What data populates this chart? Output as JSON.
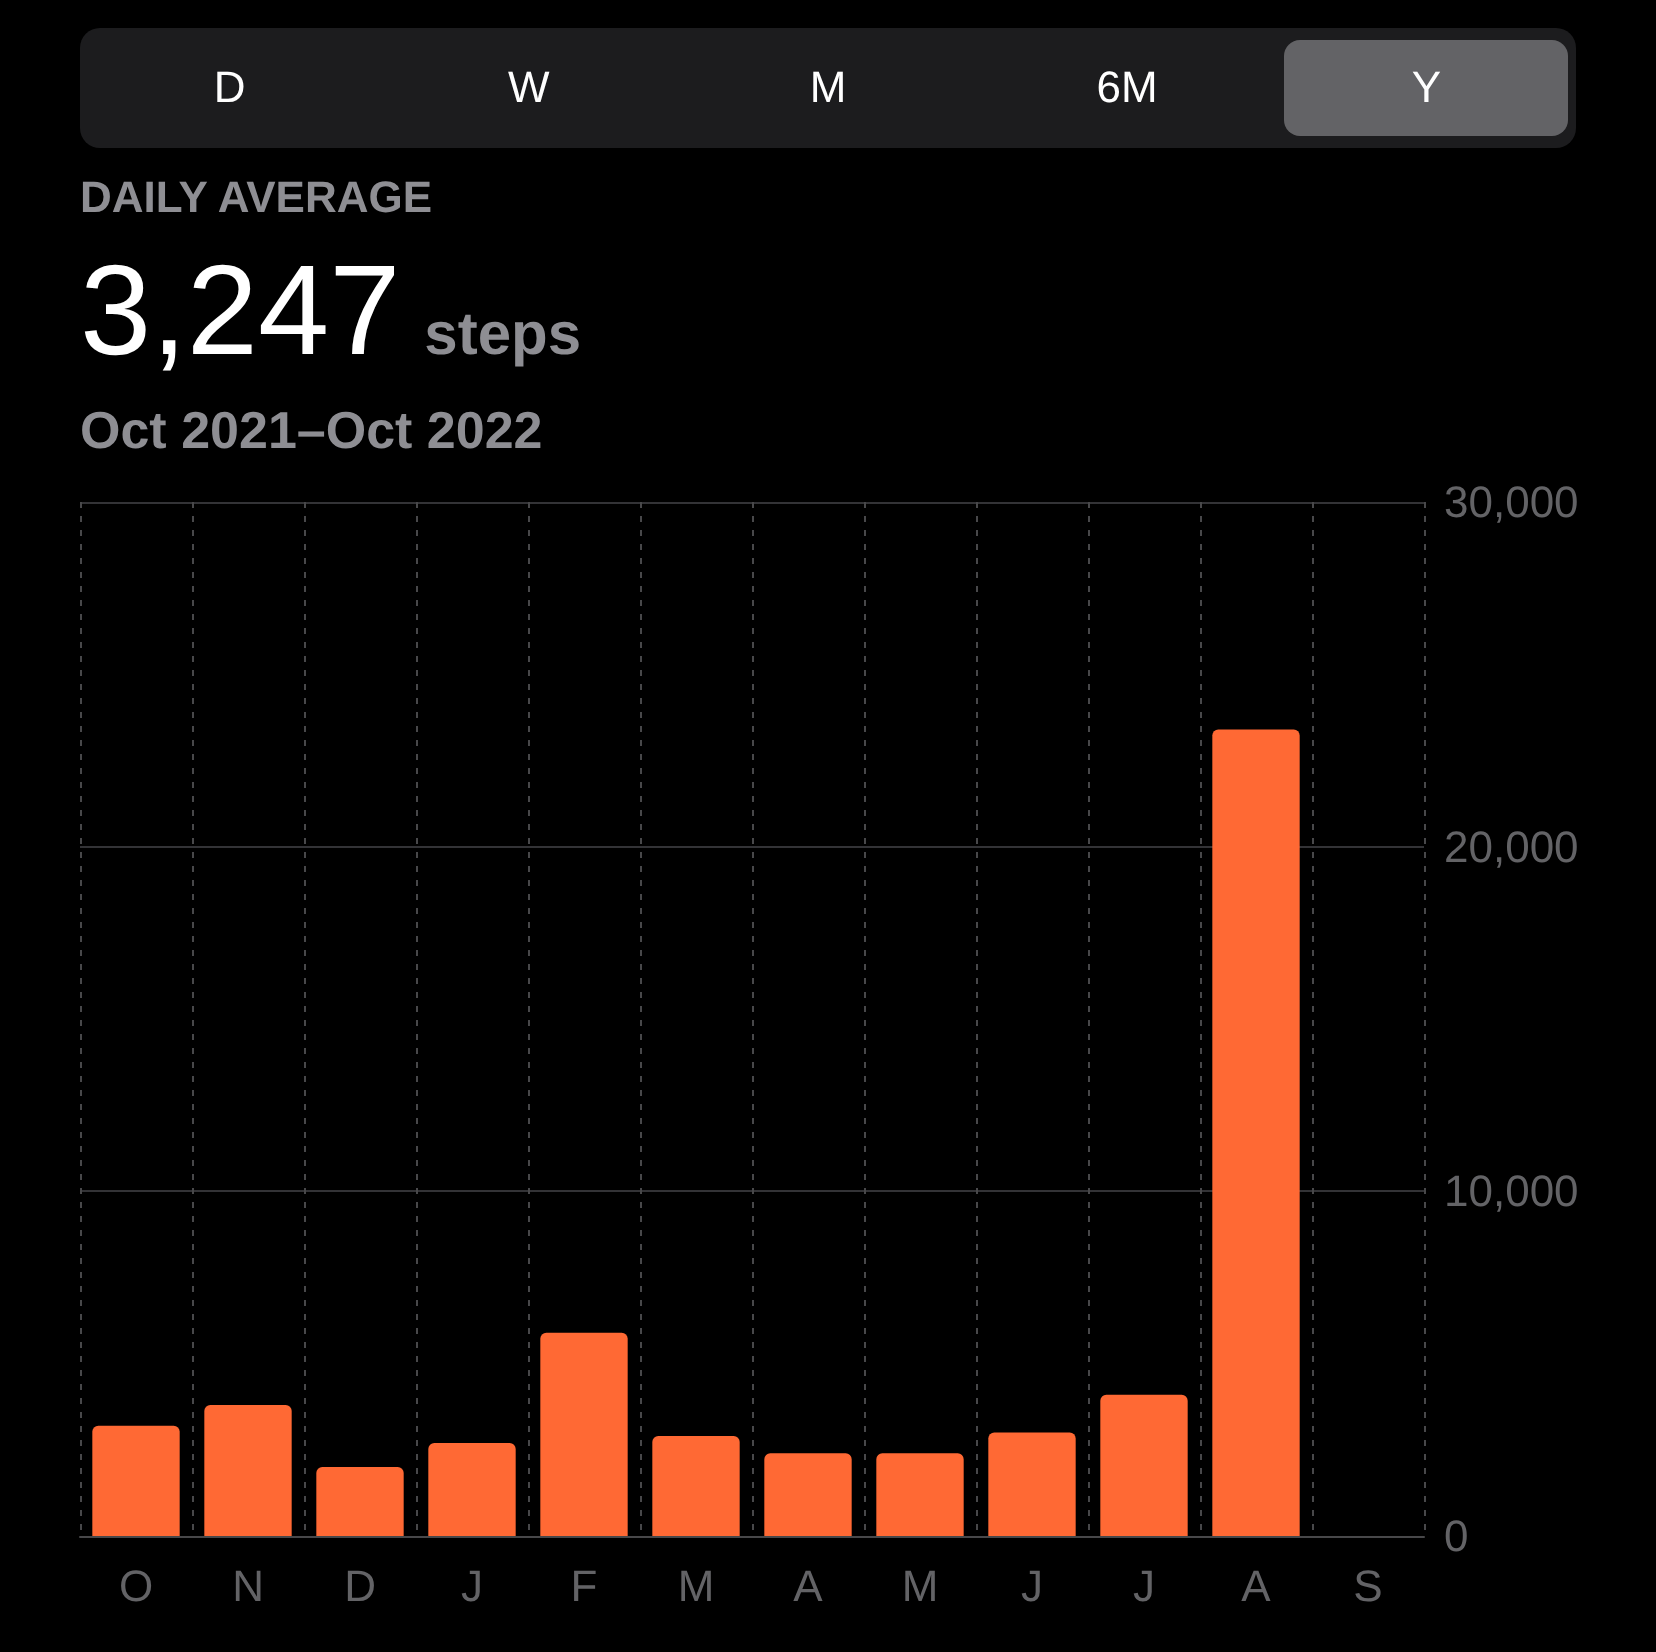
{
  "chart_data": {
    "type": "bar",
    "title": "DAILY AVERAGE",
    "subtitle": "Oct 2021–Oct 2022",
    "annotations": [
      "D",
      "W",
      "M",
      "6M",
      "Y",
      "3,247",
      "steps"
    ],
    "categories": [
      "O",
      "N",
      "D",
      "J",
      "F",
      "M",
      "A",
      "M",
      "J",
      "J",
      "A",
      "S"
    ],
    "values": [
      3200,
      3800,
      2000,
      2700,
      5900,
      2900,
      2400,
      2400,
      3000,
      4100,
      23400,
      null
    ],
    "color": "#ff6934",
    "ylim": [
      0,
      30000
    ],
    "yticks": [
      0,
      {
        "value": 10000,
        "label": "10,000"
      },
      {
        "value": 20000,
        "label": "20,000"
      },
      {
        "value": 30000,
        "label": "30,000"
      }
    ],
    "grid": true
  }
}
